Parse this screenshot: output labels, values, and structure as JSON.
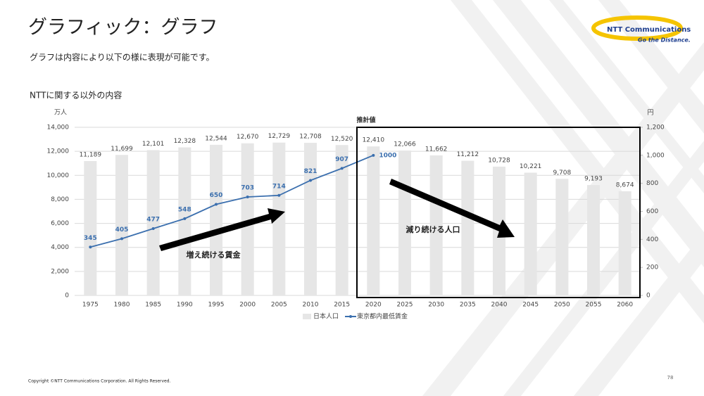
{
  "header": {
    "title": "グラフィック：グラフ",
    "subtitle": "グラフは内容により以下の様に表現が可能です。",
    "logo": {
      "brand": "NTT Communications",
      "tagline": "Go the Distance."
    }
  },
  "footer": {
    "copyright": "Copyright ©NTT Communications Corporation. All Rights Reserved.",
    "page": "78"
  },
  "chart_data": {
    "type": "bar",
    "title": "NTTに関する以外の内容",
    "ylabel": "万人",
    "y2label": "円",
    "categories": [
      "1975",
      "1980",
      "1985",
      "1990",
      "1995",
      "2000",
      "2005",
      "2010",
      "2015",
      "2020",
      "2025",
      "2030",
      "2035",
      "2040",
      "2045",
      "2050",
      "2055",
      "2060"
    ],
    "series": [
      {
        "name": "日本人口",
        "type": "bar",
        "color": "#e6e6e6",
        "values": [
          11189,
          11699,
          12101,
          12328,
          12544,
          12670,
          12729,
          12708,
          12520,
          12410,
          12066,
          11662,
          11212,
          10728,
          10221,
          9708,
          9193,
          8674
        ],
        "value_labels": [
          "11,189",
          "11,699",
          "12,101",
          "12,328",
          "12,544",
          "12,670",
          "12,729",
          "12,708",
          "12,520",
          "12,410",
          "12,066",
          "11,662",
          "11,212",
          "10,728",
          "10,221",
          "9,708",
          "9,193",
          "8,674"
        ]
      },
      {
        "name": "東京都内最低賃金",
        "type": "line",
        "axis": "y2",
        "color": "#3b6fae",
        "values": [
          345,
          405,
          477,
          548,
          650,
          703,
          714,
          821,
          907,
          1000,
          null,
          null,
          null,
          null,
          null,
          null,
          null,
          null
        ]
      }
    ],
    "ylim": [
      0,
      14000
    ],
    "yticks": [
      0,
      {
        "value": 2000,
        "label": "2,000"
      },
      {
        "value": 4000,
        "label": "4,000"
      },
      {
        "value": 6000,
        "label": "6,000"
      },
      {
        "value": 8000,
        "label": "8,000"
      },
      {
        "value": 10000,
        "label": "10,000"
      },
      {
        "value": 12000,
        "label": "12,000"
      },
      {
        "value": 14000,
        "label": "14,000"
      }
    ],
    "y2lim": [
      0,
      1200
    ],
    "y2ticks": [
      0,
      200,
      400,
      600,
      800,
      {
        "value": 1000,
        "label": "1,000"
      },
      {
        "value": 1200,
        "label": "1,200"
      }
    ],
    "grid": true,
    "legend": "bottom",
    "annotations": {
      "forecast": "推計値",
      "wage": "増え続ける賃金",
      "population": "減り続ける人口"
    }
  }
}
